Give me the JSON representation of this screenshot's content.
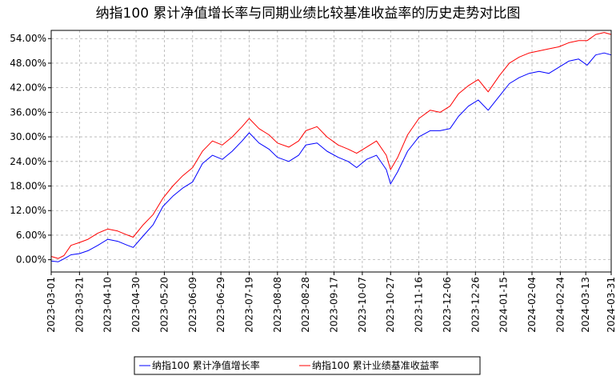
{
  "chart_data": {
    "type": "line",
    "title": "纳指100 累计净值增长率与同期业绩比较基准收益率的历史走势对比图",
    "xlabel": "",
    "ylabel": "",
    "ylim": [
      -3.0,
      56.0
    ],
    "y_ticks": [
      "0.00%",
      "6.00%",
      "12.00%",
      "18.00%",
      "24.00%",
      "30.00%",
      "36.00%",
      "42.00%",
      "48.00%",
      "54.00%"
    ],
    "y_tick_values": [
      0,
      6,
      12,
      18,
      24,
      30,
      36,
      42,
      48,
      54
    ],
    "x_range": [
      "2023-03-01",
      "2024-03-31"
    ],
    "x_ticks": [
      "2023-03-01",
      "2023-03-21",
      "2023-04-10",
      "2023-04-30",
      "2023-05-20",
      "2023-06-09",
      "2023-06-29",
      "2023-07-19",
      "2023-08-08",
      "2023-08-28",
      "2023-09-17",
      "2023-10-07",
      "2023-10-27",
      "2023-11-16",
      "2023-12-06",
      "2023-12-26",
      "2024-01-15",
      "2024-02-04",
      "2024-02-24",
      "2024-03-13",
      "2024-03-31"
    ],
    "grid": true,
    "legend_position": "bottom",
    "series": [
      {
        "name": "纳指100 累计净值增长率",
        "color": "#0000ff",
        "x": [
          "2023-03-01",
          "2023-03-06",
          "2023-03-10",
          "2023-03-15",
          "2023-03-21",
          "2023-03-27",
          "2023-04-03",
          "2023-04-10",
          "2023-04-17",
          "2023-04-24",
          "2023-04-28",
          "2023-05-05",
          "2023-05-12",
          "2023-05-19",
          "2023-05-26",
          "2023-06-02",
          "2023-06-09",
          "2023-06-16",
          "2023-06-23",
          "2023-06-30",
          "2023-07-07",
          "2023-07-14",
          "2023-07-19",
          "2023-07-26",
          "2023-08-02",
          "2023-08-08",
          "2023-08-16",
          "2023-08-23",
          "2023-08-28",
          "2023-09-05",
          "2023-09-12",
          "2023-09-20",
          "2023-09-27",
          "2023-10-03",
          "2023-10-10",
          "2023-10-17",
          "2023-10-24",
          "2023-10-27",
          "2023-11-01",
          "2023-11-08",
          "2023-11-16",
          "2023-11-24",
          "2023-12-01",
          "2023-12-08",
          "2023-12-14",
          "2023-12-21",
          "2023-12-28",
          "2024-01-04",
          "2024-01-12",
          "2024-01-19",
          "2024-01-26",
          "2024-02-02",
          "2024-02-09",
          "2024-02-16",
          "2024-02-23",
          "2024-03-01",
          "2024-03-08",
          "2024-03-14",
          "2024-03-20",
          "2024-03-26",
          "2024-03-31"
        ],
        "values": [
          -0.3,
          -0.5,
          0.2,
          1.2,
          1.5,
          2.2,
          3.5,
          5.0,
          4.5,
          3.5,
          3.0,
          5.8,
          8.5,
          13.0,
          15.5,
          17.5,
          19.0,
          23.5,
          25.5,
          24.5,
          26.5,
          29.0,
          31.0,
          28.5,
          27.0,
          25.0,
          24.0,
          25.5,
          28.0,
          28.5,
          26.5,
          25.0,
          24.0,
          22.5,
          24.5,
          25.5,
          22.0,
          18.5,
          21.5,
          26.5,
          30.0,
          31.5,
          31.5,
          32.0,
          35.0,
          37.5,
          39.0,
          36.5,
          40.0,
          43.0,
          44.5,
          45.5,
          46.0,
          45.5,
          47.0,
          48.5,
          49.0,
          47.5,
          50.0,
          50.5,
          50.0
        ]
      },
      {
        "name": "纳指100 累计业绩基准收益率",
        "color": "#ff0000",
        "x": [
          "2023-03-01",
          "2023-03-06",
          "2023-03-10",
          "2023-03-15",
          "2023-03-21",
          "2023-03-27",
          "2023-04-03",
          "2023-04-10",
          "2023-04-17",
          "2023-04-24",
          "2023-04-28",
          "2023-05-05",
          "2023-05-12",
          "2023-05-19",
          "2023-05-26",
          "2023-06-02",
          "2023-06-09",
          "2023-06-16",
          "2023-06-23",
          "2023-06-30",
          "2023-07-07",
          "2023-07-14",
          "2023-07-19",
          "2023-07-26",
          "2023-08-02",
          "2023-08-08",
          "2023-08-16",
          "2023-08-23",
          "2023-08-28",
          "2023-09-05",
          "2023-09-12",
          "2023-09-20",
          "2023-09-27",
          "2023-10-03",
          "2023-10-10",
          "2023-10-17",
          "2023-10-24",
          "2023-10-27",
          "2023-11-01",
          "2023-11-08",
          "2023-11-16",
          "2023-11-24",
          "2023-12-01",
          "2023-12-08",
          "2023-12-14",
          "2023-12-21",
          "2023-12-28",
          "2024-01-04",
          "2024-01-12",
          "2024-01-19",
          "2024-01-26",
          "2024-02-02",
          "2024-02-09",
          "2024-02-16",
          "2024-02-23",
          "2024-03-01",
          "2024-03-08",
          "2024-03-14",
          "2024-03-20",
          "2024-03-26",
          "2024-03-31"
        ],
        "values": [
          0.8,
          0.3,
          1.0,
          3.5,
          4.2,
          5.0,
          6.5,
          7.5,
          7.0,
          6.0,
          5.5,
          8.5,
          11.0,
          15.0,
          18.0,
          20.5,
          22.5,
          26.5,
          29.0,
          28.0,
          30.0,
          32.5,
          34.5,
          32.0,
          30.5,
          28.5,
          27.5,
          29.0,
          31.5,
          32.5,
          30.0,
          28.0,
          27.0,
          26.0,
          27.5,
          29.0,
          25.5,
          22.0,
          25.0,
          30.5,
          34.5,
          36.5,
          36.0,
          37.5,
          40.5,
          42.5,
          44.0,
          41.0,
          45.0,
          48.0,
          49.5,
          50.5,
          51.0,
          51.5,
          52.0,
          53.0,
          53.5,
          53.5,
          55.0,
          55.5,
          55.0
        ]
      }
    ]
  }
}
